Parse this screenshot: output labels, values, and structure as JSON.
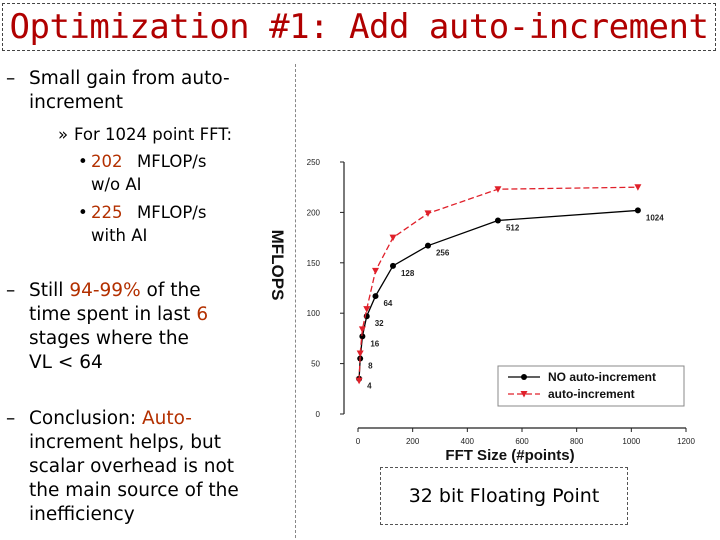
{
  "slide": {
    "title": "Optimization #1: Add auto-increment",
    "bullets": {
      "b1_line1": "Small gain from auto-",
      "b1_line2": "increment",
      "sub_marker": "»",
      "sub1": "For 1024 point FFT:",
      "item_dot": "•",
      "item1_value": "202",
      "item1_unit": "MFLOP/s",
      "item1_line2": "w/o AI",
      "item2_value": "225",
      "item2_unit": "MFLOP/s",
      "item2_line2": "with AI",
      "b2_prefix": "Still",
      "b2_pct": "94-99%",
      "b2_mid": "of the",
      "b2_line2a": "time spent in last",
      "b2_six": "6",
      "b2_line3": "stages where the",
      "b2_line4": "VL < 64",
      "b3_prefix": "Conclusion:",
      "b3_auto": "Auto-",
      "b3_line2": "increment helps, but",
      "b3_line3": "scalar overhead is not",
      "b3_line4": "the main source of the",
      "b3_line5": "inefficiency",
      "dash": "–"
    },
    "caption": "32 bit Floating Point"
  },
  "colors": {
    "title": "#B00000",
    "accent": "#B33000",
    "series_no_ai": "#000000",
    "series_ai": "#E0202A"
  },
  "chart_data": {
    "type": "line",
    "xlabel": "FFT Size (#points)",
    "ylabel": "MFLOPS",
    "xlim": [
      0,
      1200
    ],
    "ylim": [
      0,
      250
    ],
    "xticks": [
      0,
      200,
      400,
      600,
      800,
      1000,
      1200
    ],
    "yticks": [
      0,
      50,
      100,
      150,
      200,
      250
    ],
    "grid": false,
    "legend_position": "bottom-right",
    "series": [
      {
        "name": "NO auto-increment",
        "marker": "circle",
        "x": [
          4,
          8,
          16,
          32,
          64,
          128,
          256,
          512,
          1024
        ],
        "y": [
          35,
          55,
          77,
          97,
          117,
          147,
          167,
          192,
          202
        ]
      },
      {
        "name": "auto-increment",
        "marker": "triangle-down",
        "x": [
          4,
          8,
          16,
          32,
          64,
          128,
          256,
          512,
          1024
        ],
        "y": [
          33,
          60,
          84,
          104,
          142,
          175,
          199,
          223,
          225
        ]
      }
    ],
    "point_labels": [
      {
        "x": 4,
        "y": 35,
        "text": "4"
      },
      {
        "x": 8,
        "y": 55,
        "text": "8"
      },
      {
        "x": 16,
        "y": 77,
        "text": "16"
      },
      {
        "x": 32,
        "y": 97,
        "text": "32"
      },
      {
        "x": 64,
        "y": 117,
        "text": "64"
      },
      {
        "x": 128,
        "y": 147,
        "text": "128"
      },
      {
        "x": 256,
        "y": 167,
        "text": "256"
      },
      {
        "x": 512,
        "y": 192,
        "text": "512"
      },
      {
        "x": 1024,
        "y": 202,
        "text": "1024"
      }
    ]
  }
}
